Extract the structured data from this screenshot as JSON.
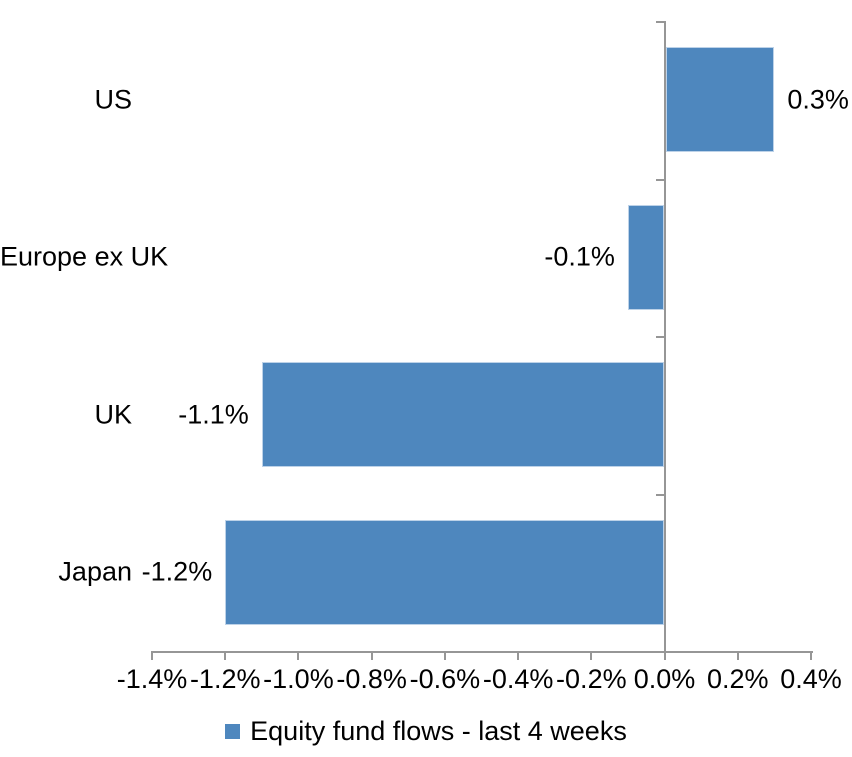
{
  "chart_data": {
    "type": "bar",
    "orientation": "horizontal",
    "title": "",
    "xlabel": "",
    "ylabel": "",
    "categories": [
      "US",
      "Europe ex UK",
      "UK",
      "Japan"
    ],
    "series": [
      {
        "name": "Equity fund flows - last 4 weeks",
        "values": [
          0.3,
          -0.1,
          -1.1,
          -1.2
        ],
        "data_labels": [
          "0.3%",
          "-0.1%",
          "-1.1%",
          "-1.2%"
        ]
      }
    ],
    "xlim": [
      -1.4,
      0.4
    ],
    "x_tick_values": [
      -1.4,
      -1.2,
      -1.0,
      -0.8,
      -0.6,
      -0.4,
      -0.2,
      0.0,
      0.2,
      0.4
    ],
    "x_tick_labels": [
      "-1.4%",
      "-1.2%",
      "-1.0%",
      "-0.8%",
      "-0.6%",
      "-0.4%",
      "-0.2%",
      "0.0%",
      "0.2%",
      "0.4%"
    ],
    "grid": false,
    "legend_position": "bottom",
    "bar_color": "#4e87be",
    "bar_edge_color": "#bdd2e8",
    "axis_color": "#969696",
    "text_color": "#000000"
  },
  "legend": {
    "label": "Equity fund flows - last 4 weeks"
  }
}
